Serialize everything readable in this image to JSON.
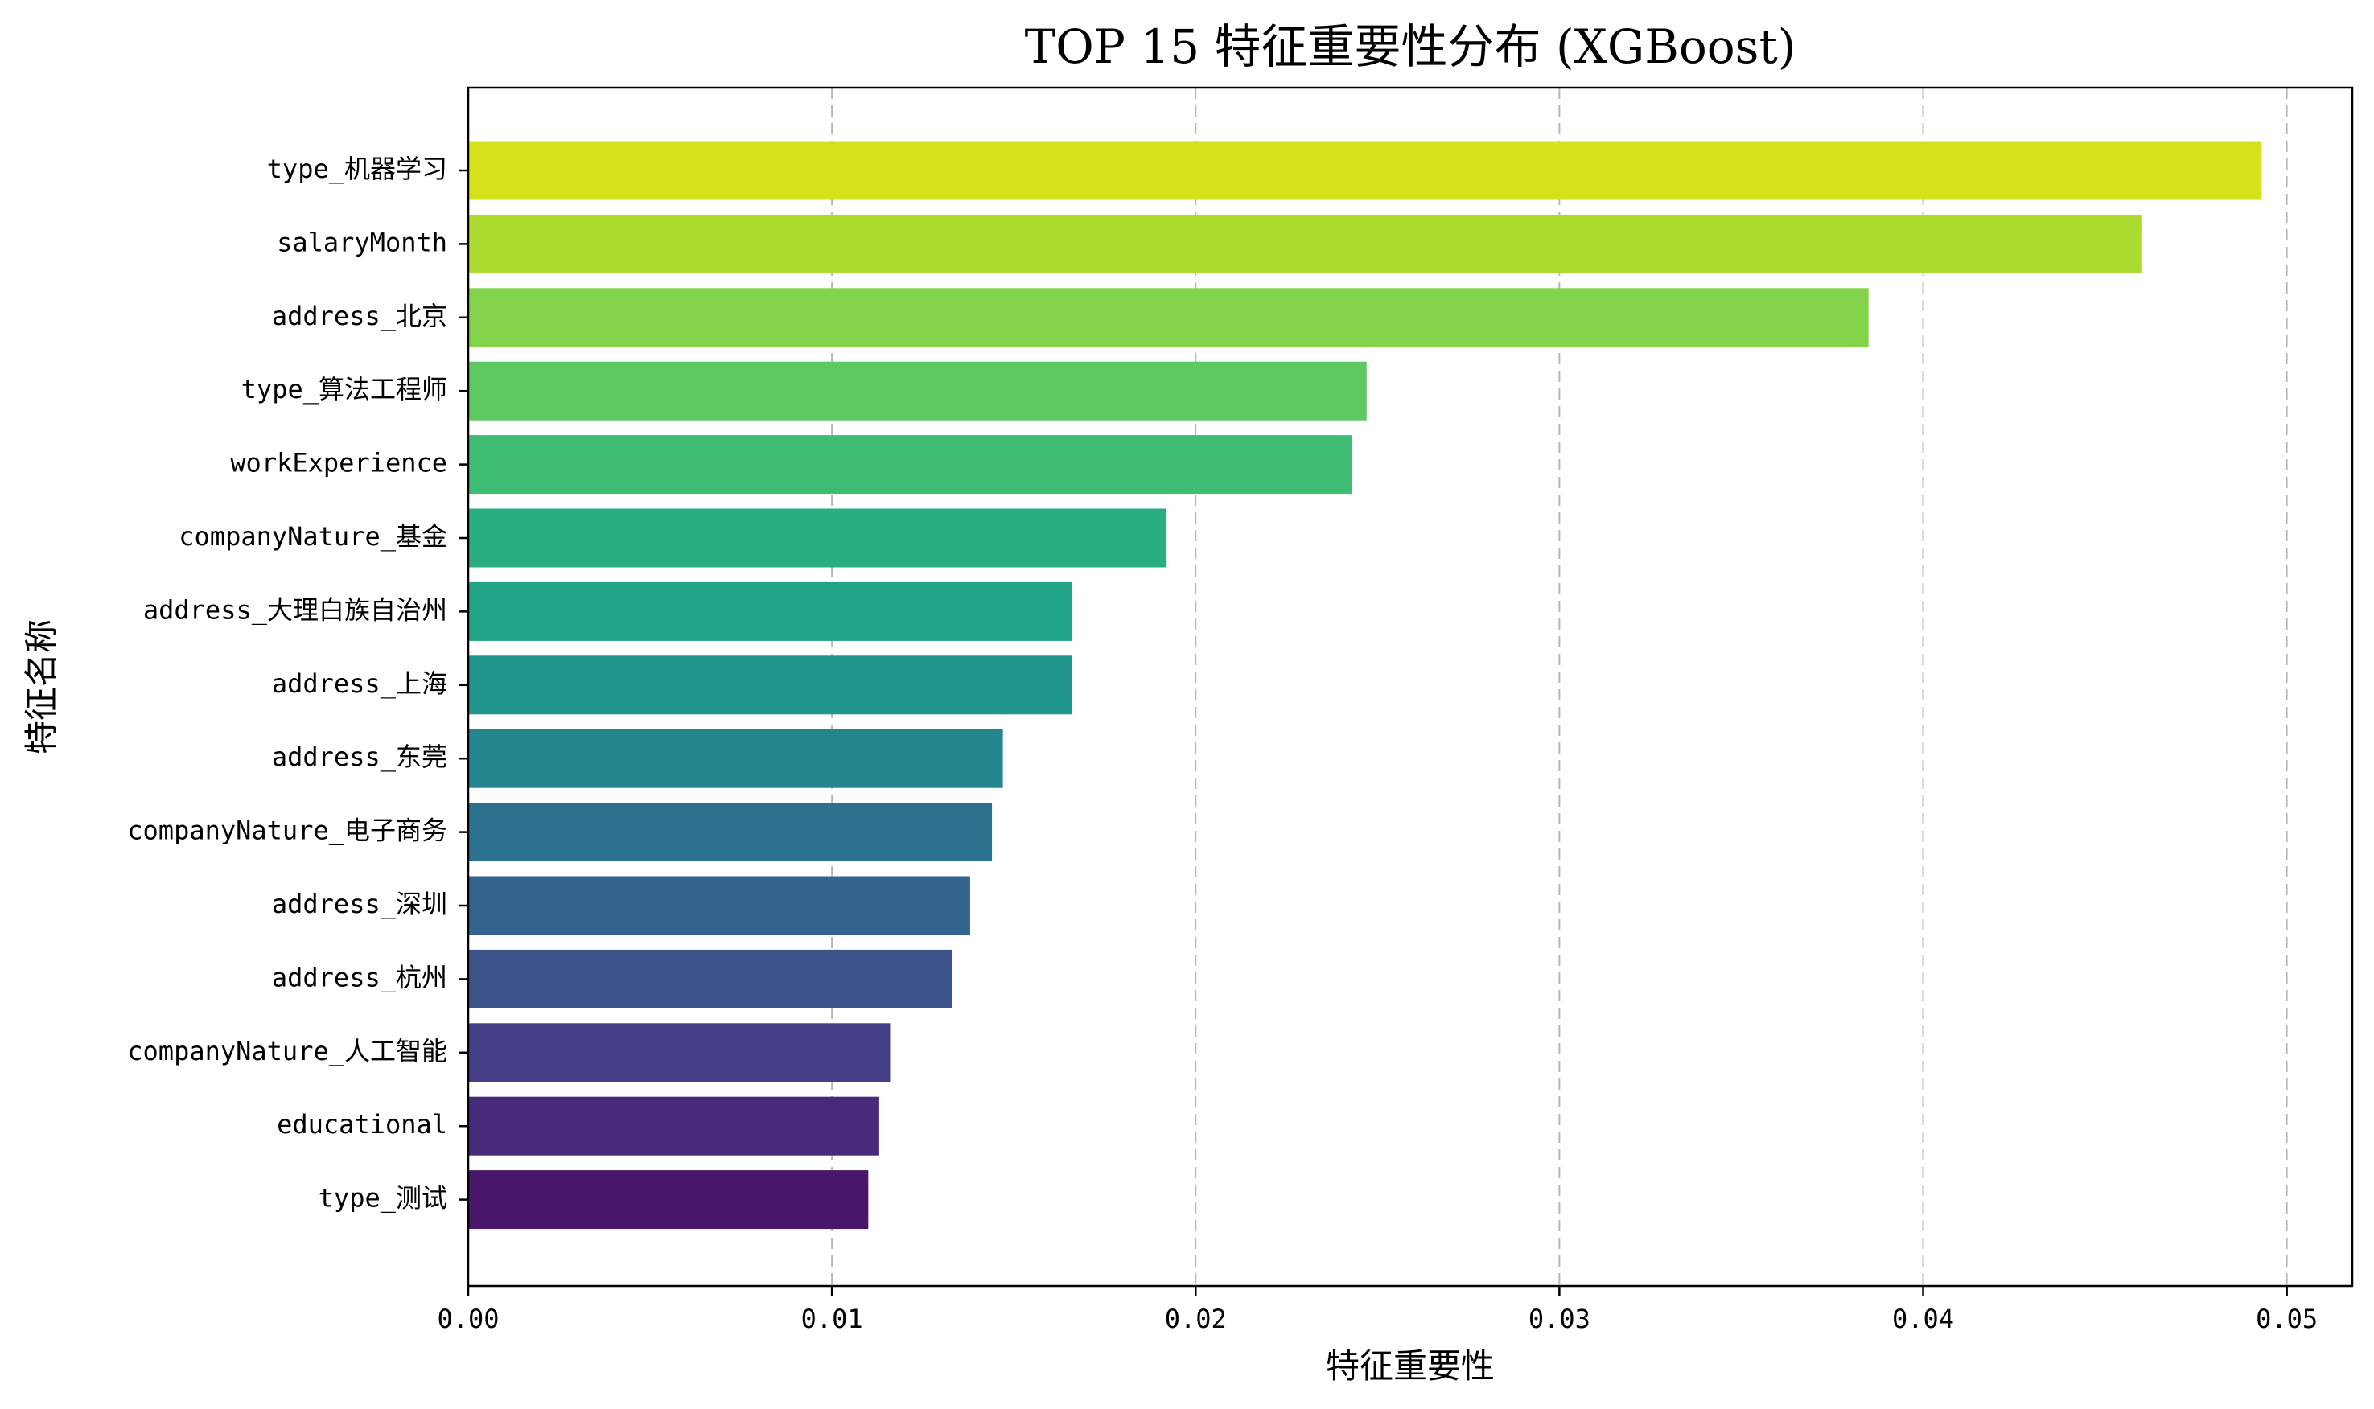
{
  "chart_data": {
    "type": "bar",
    "orientation": "horizontal",
    "title": "TOP 15 特征重要性分布 (XGBoost)",
    "xlabel": "特征重要性",
    "ylabel": "特征名称",
    "xlim": [
      0,
      0.0518
    ],
    "xticks": [
      0.0,
      0.01,
      0.02,
      0.03,
      0.04,
      0.05
    ],
    "xtick_labels": [
      "0.00",
      "0.01",
      "0.02",
      "0.03",
      "0.04",
      "0.05"
    ],
    "grid": "x-dashed",
    "colormap": "viridis",
    "categories": [
      "type_机器学习",
      "salaryMonth",
      "address_北京",
      "type_算法工程师",
      "workExperience",
      "companyNature_基金",
      "address_大理白族自治州",
      "address_上海",
      "address_东莞",
      "companyNature_电子商务",
      "address_深圳",
      "address_杭州",
      "companyNature_人工智能",
      "educational",
      "type_测试"
    ],
    "values": [
      0.0493,
      0.046,
      0.0385,
      0.0247,
      0.0243,
      0.0192,
      0.0166,
      0.0166,
      0.0147,
      0.0144,
      0.0138,
      0.0133,
      0.0116,
      0.0113,
      0.011
    ],
    "colors": [
      "#d5e21a",
      "#addc30",
      "#84d44b",
      "#5ec962",
      "#3fbc73",
      "#28ae80",
      "#20a386",
      "#1f958b",
      "#25858e",
      "#2c728e",
      "#33638d",
      "#3b528b",
      "#433e85",
      "#472a7a",
      "#481769"
    ]
  }
}
